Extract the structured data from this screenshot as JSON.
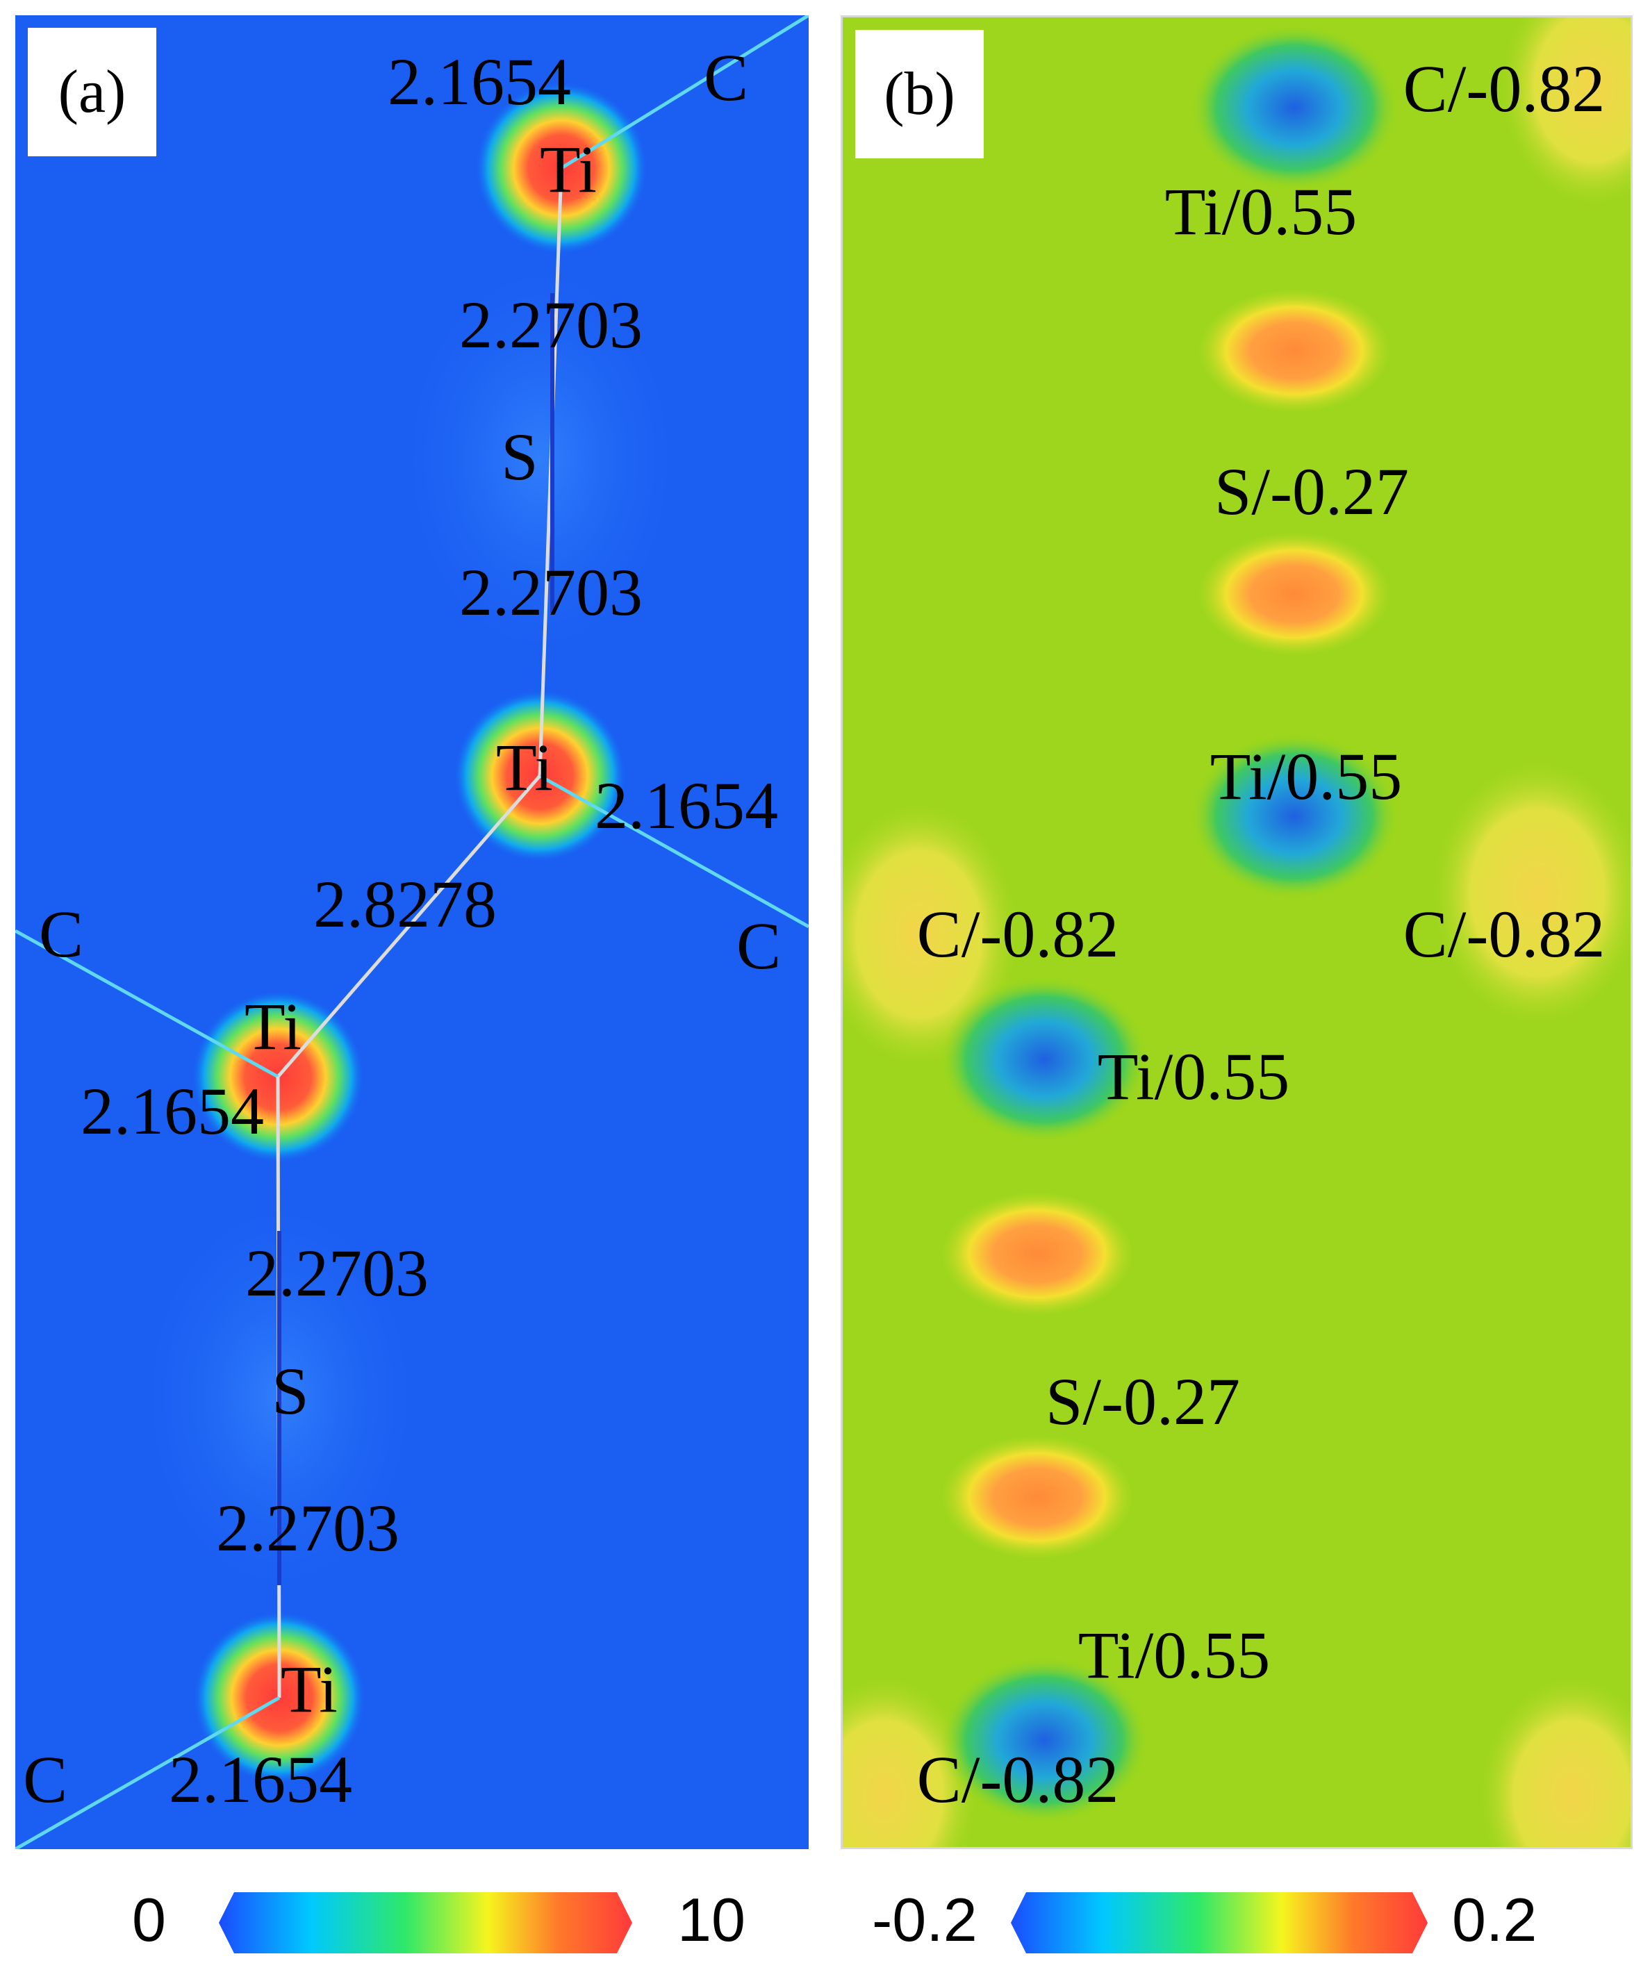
{
  "panel_a": {
    "label": "(a)",
    "atoms": [
      {
        "id": "c-top-right",
        "text": "C"
      },
      {
        "id": "ti-1",
        "text": "Ti"
      },
      {
        "id": "s-1",
        "text": "S"
      },
      {
        "id": "ti-2",
        "text": "Ti"
      },
      {
        "id": "c-mid-left",
        "text": "C"
      },
      {
        "id": "c-mid-right",
        "text": "C"
      },
      {
        "id": "ti-3",
        "text": "Ti"
      },
      {
        "id": "s-2",
        "text": "S"
      },
      {
        "id": "ti-4",
        "text": "Ti"
      },
      {
        "id": "c-bottom-left",
        "text": "C"
      }
    ],
    "bond_lengths": [
      {
        "id": "bond-ti1-c",
        "text": "2.1654"
      },
      {
        "id": "bond-ti1-s1",
        "text": "2.2703"
      },
      {
        "id": "bond-s1-ti2",
        "text": "2.2703"
      },
      {
        "id": "bond-ti2-c",
        "text": "2.1654"
      },
      {
        "id": "bond-ti2-ti3",
        "text": "2.8278"
      },
      {
        "id": "bond-ti3-c",
        "text": "2.1654"
      },
      {
        "id": "bond-ti3-s2",
        "text": "2.2703"
      },
      {
        "id": "bond-s2-ti4",
        "text": "2.2703"
      },
      {
        "id": "bond-ti4-c",
        "text": "2.1654"
      }
    ]
  },
  "panel_b": {
    "label": "(b)",
    "charges": [
      {
        "id": "c-1",
        "text": "C/-0.82"
      },
      {
        "id": "ti-1",
        "text": "Ti/0.55"
      },
      {
        "id": "s-1",
        "text": "S/-0.27"
      },
      {
        "id": "ti-2",
        "text": "Ti/0.55"
      },
      {
        "id": "c-2",
        "text": "C/-0.82"
      },
      {
        "id": "c-3",
        "text": "C/-0.82"
      },
      {
        "id": "ti-3",
        "text": "Ti/0.55"
      },
      {
        "id": "s-2",
        "text": "S/-0.27"
      },
      {
        "id": "ti-4",
        "text": "Ti/0.55"
      },
      {
        "id": "c-4",
        "text": "C/-0.82"
      }
    ]
  },
  "colorbar_a": {
    "min": "0",
    "max": "10",
    "colors": [
      "#1a4cff",
      "#00c8ff",
      "#2ee86a",
      "#f5f51e",
      "#ff7a2a",
      "#ff3a3a"
    ]
  },
  "colorbar_b": {
    "min": "-0.2",
    "max": "0.2",
    "colors": [
      "#1a4cff",
      "#00c8ff",
      "#2ee86a",
      "#f5f51e",
      "#ff7a2a",
      "#ff3a3a"
    ]
  }
}
